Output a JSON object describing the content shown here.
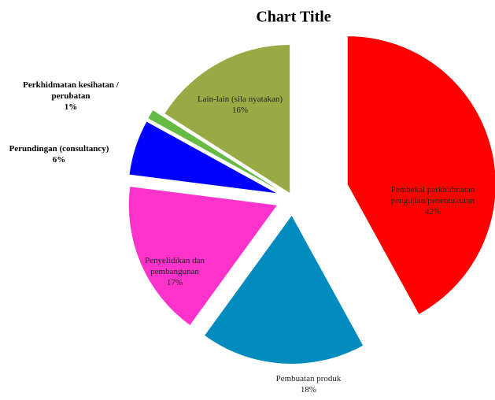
{
  "chart_data": {
    "type": "pie",
    "title": "Chart Title",
    "categories": [
      "Pembekal perkhidmatan pengujian/penentukuran",
      "Pembuatan produk",
      "Penyelidikan dan pembangunan",
      "Perundingan (consultancy)",
      "Perkhidmatan kesihatan / perubatan",
      "Lain-lain (sila nyatakan)"
    ],
    "values": [
      42,
      18,
      17,
      6,
      1,
      16
    ],
    "value_labels": [
      "42%",
      "18%",
      "17%",
      "6%",
      "1%",
      "16%"
    ],
    "colors": [
      "#ff0000",
      "#008bbf",
      "#ff33cc",
      "#0000ff",
      "#66bb44",
      "#99aa44"
    ]
  }
}
